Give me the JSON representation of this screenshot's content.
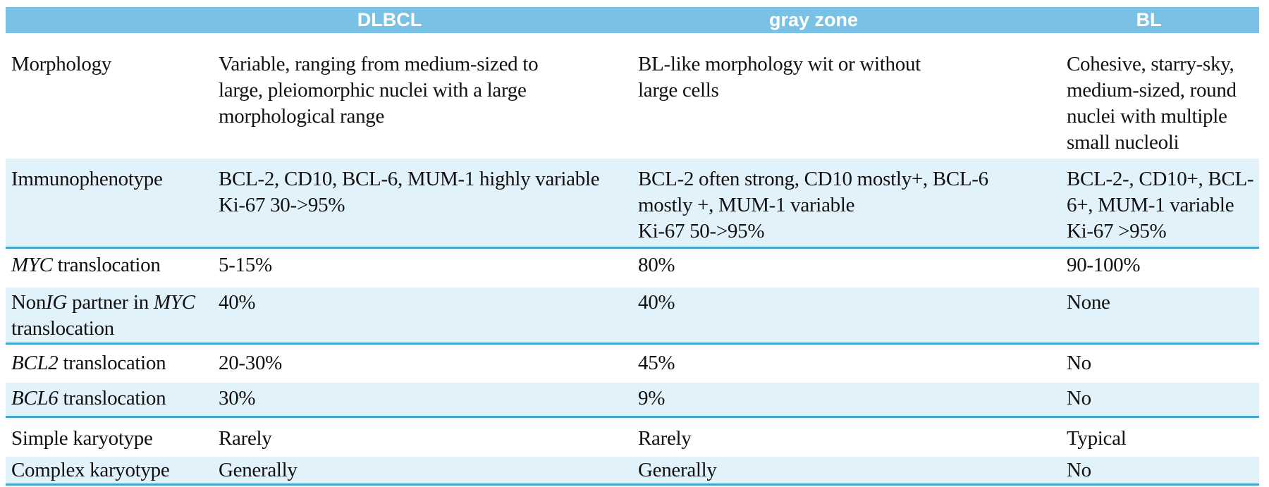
{
  "header": {
    "columns": [
      "",
      "DLBCL",
      "gray zone",
      "BL"
    ],
    "background": "#79C1E5",
    "text_color": "#FFFFFF"
  },
  "colors": {
    "header_blue": "#79C1E5",
    "stripe_blue": "#E2F2FA",
    "divider_blue": "#3BA6CF",
    "text": "#111111"
  },
  "rows": [
    {
      "label_segments": [
        {
          "text": "Morphology",
          "italic": false
        }
      ],
      "cells": {
        "dlbcl": "Variable, ranging from medium-sized to\nlarge, pleiomorphic nuclei with a large\nmorphological range",
        "gray_zone": "BL-like morphology wit or without\nlarge cells",
        "bl": "Cohesive, starry-sky,\nmedium-sized, round\nnuclei with multiple\nsmall nucleoli"
      },
      "striped": false,
      "divider_after": false
    },
    {
      "label_segments": [
        {
          "text": "Immunophenotype",
          "italic": false
        }
      ],
      "cells": {
        "dlbcl": "BCL-2, CD10, BCL-6, MUM-1 highly variable\nKi-67 30->95%",
        "gray_zone": "BCL-2 often strong, CD10 mostly+, BCL-6\nmostly +, MUM-1 variable\nKi-67 50->95%",
        "bl": "BCL-2-, CD10+, BCL-\n6+, MUM-1 variable\nKi-67 >95%"
      },
      "striped": true,
      "divider_after": true
    },
    {
      "label_segments": [
        {
          "text": "MYC",
          "italic": true
        },
        {
          "text": " translocation",
          "italic": false
        }
      ],
      "cells": {
        "dlbcl": "5-15%",
        "gray_zone": "80%",
        "bl": "90-100%"
      },
      "striped": false,
      "divider_after": false
    },
    {
      "label_segments": [
        {
          "text": "Non",
          "italic": false
        },
        {
          "text": "IG",
          "italic": true
        },
        {
          "text": " partner in ",
          "italic": false
        },
        {
          "text": "MYC",
          "italic": true
        },
        {
          "text": "\ntranslocation",
          "italic": false
        }
      ],
      "cells": {
        "dlbcl": "40%",
        "gray_zone": "40%",
        "bl": "None"
      },
      "striped": true,
      "divider_after": true
    },
    {
      "label_segments": [
        {
          "text": "BCL2",
          "italic": true
        },
        {
          "text": " translocation",
          "italic": false
        }
      ],
      "cells": {
        "dlbcl": "20-30%",
        "gray_zone": "45%",
        "bl": "No"
      },
      "striped": false,
      "divider_after": false
    },
    {
      "label_segments": [
        {
          "text": "BCL6",
          "italic": true
        },
        {
          "text": " translocation",
          "italic": false
        }
      ],
      "cells": {
        "dlbcl": "30%",
        "gray_zone": "9%",
        "bl": "No"
      },
      "striped": true,
      "divider_after": true
    },
    {
      "label_segments": [
        {
          "text": "Simple karyotype",
          "italic": false
        }
      ],
      "cells": {
        "dlbcl": "Rarely",
        "gray_zone": "Rarely",
        "bl": "Typical"
      },
      "striped": false,
      "divider_after": false
    },
    {
      "label_segments": [
        {
          "text": "Complex karyotype",
          "italic": false
        }
      ],
      "cells": {
        "dlbcl": "Generally",
        "gray_zone": "Generally",
        "bl": "No"
      },
      "striped": true,
      "divider_after": true
    }
  ]
}
